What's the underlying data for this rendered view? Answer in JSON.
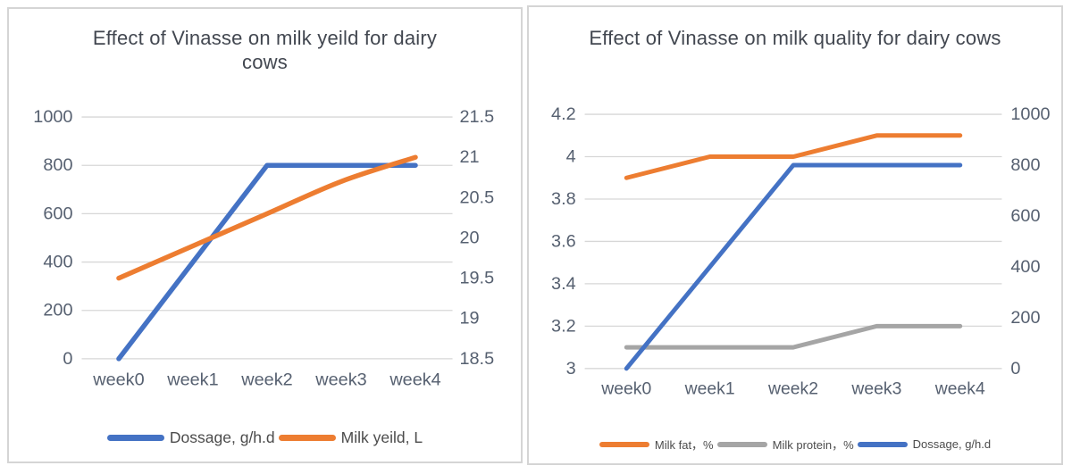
{
  "colors": {
    "blue": "#4472C4",
    "orange": "#ED7D31",
    "gray": "#A5A5A5",
    "gridline": "#d7d7d7",
    "tick_text": "#566070",
    "title_text": "#424750",
    "panel_border": "#d5d5d5",
    "panel_bg": "#ffffff"
  },
  "chart_data": [
    {
      "type": "line",
      "title": "Effect of Vinasse on milk yeild for dairy cows",
      "categories": [
        "week0",
        "week1",
        "week2",
        "week3",
        "week4"
      ],
      "series": [
        {
          "name": "Dossage, g/h.d",
          "axis": "left",
          "color": "#4472C4",
          "smooth": false,
          "values": [
            0,
            400,
            800,
            800,
            800
          ]
        },
        {
          "name": "Milk yeild, L",
          "axis": "right",
          "color": "#ED7D31",
          "smooth": true,
          "values": [
            19.5,
            19.9,
            20.3,
            20.7,
            21
          ]
        }
      ],
      "left_axis": {
        "min": 0,
        "max": 1000,
        "ticks": [
          "1000",
          "800",
          "600",
          "400",
          "200",
          "0"
        ]
      },
      "right_axis": {
        "min": 18.5,
        "max": 21.5,
        "ticks": [
          "21.5",
          "21",
          "20.5",
          "20",
          "19.5",
          "19",
          "18.5"
        ]
      },
      "grid": true,
      "legend_position": "bottom"
    },
    {
      "type": "line",
      "title": "Effect of Vinasse on milk quality for dairy cows",
      "categories": [
        "week0",
        "week1",
        "week2",
        "week3",
        "week4"
      ],
      "series": [
        {
          "name": "Milk fat，%",
          "axis": "left",
          "color": "#ED7D31",
          "smooth": false,
          "values": [
            3.9,
            4,
            4,
            4.1,
            4.1
          ]
        },
        {
          "name": "Milk protein，%",
          "axis": "left",
          "color": "#A5A5A5",
          "smooth": false,
          "values": [
            3.1,
            3.1,
            3.1,
            3.2,
            3.2
          ]
        },
        {
          "name": "Dossage, g/h.d",
          "axis": "right",
          "color": "#4472C4",
          "smooth": false,
          "values": [
            0,
            400,
            800,
            800,
            800
          ]
        }
      ],
      "left_axis": {
        "min": 3,
        "max": 4.2,
        "ticks": [
          "4.2",
          "4",
          "3.8",
          "3.6",
          "3.4",
          "3.2",
          "3"
        ]
      },
      "right_axis": {
        "min": 0,
        "max": 1000,
        "ticks": [
          "1000",
          "800",
          "600",
          "400",
          "200",
          "0"
        ]
      },
      "grid": true,
      "legend_position": "bottom"
    }
  ]
}
